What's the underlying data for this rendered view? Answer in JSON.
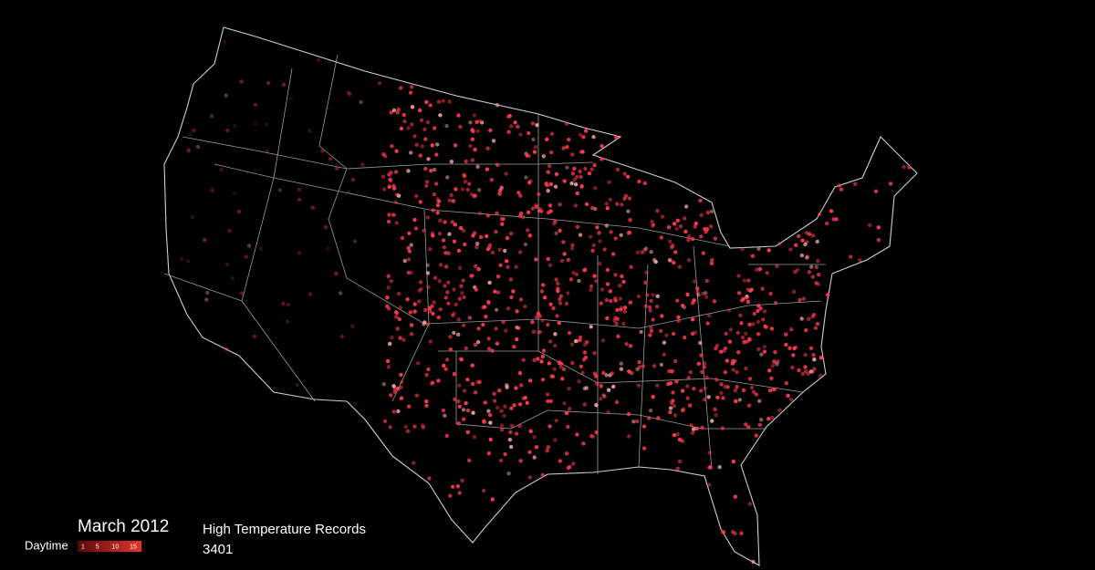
{
  "date": "March 2012",
  "legend": {
    "label": "Daytime",
    "ticks": [
      1,
      5,
      10,
      15
    ]
  },
  "record_type": "High Temperature Records",
  "count": 3401
}
